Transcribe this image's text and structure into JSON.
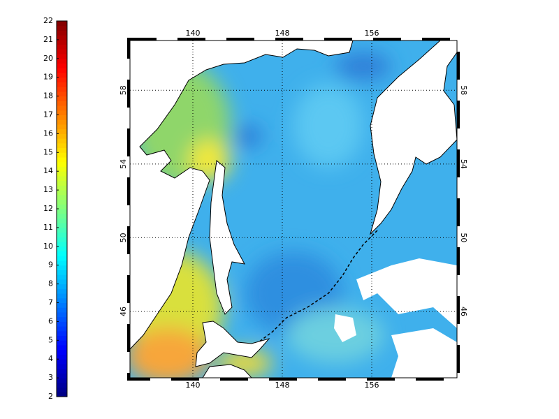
{
  "colorbar": {
    "lim": [
      2,
      22
    ],
    "ticks": [
      2,
      3,
      4,
      5,
      6,
      7,
      8,
      9,
      10,
      11,
      12,
      13,
      14,
      15,
      16,
      17,
      18,
      19,
      20,
      21,
      22
    ]
  },
  "map": {
    "lonlim": [
      134.375,
      163.625
    ],
    "latlim": [
      42.4,
      60.7
    ],
    "lon_ticks": [
      140,
      148,
      156
    ],
    "lat_ticks": [
      46,
      50,
      54,
      58
    ]
  }
}
